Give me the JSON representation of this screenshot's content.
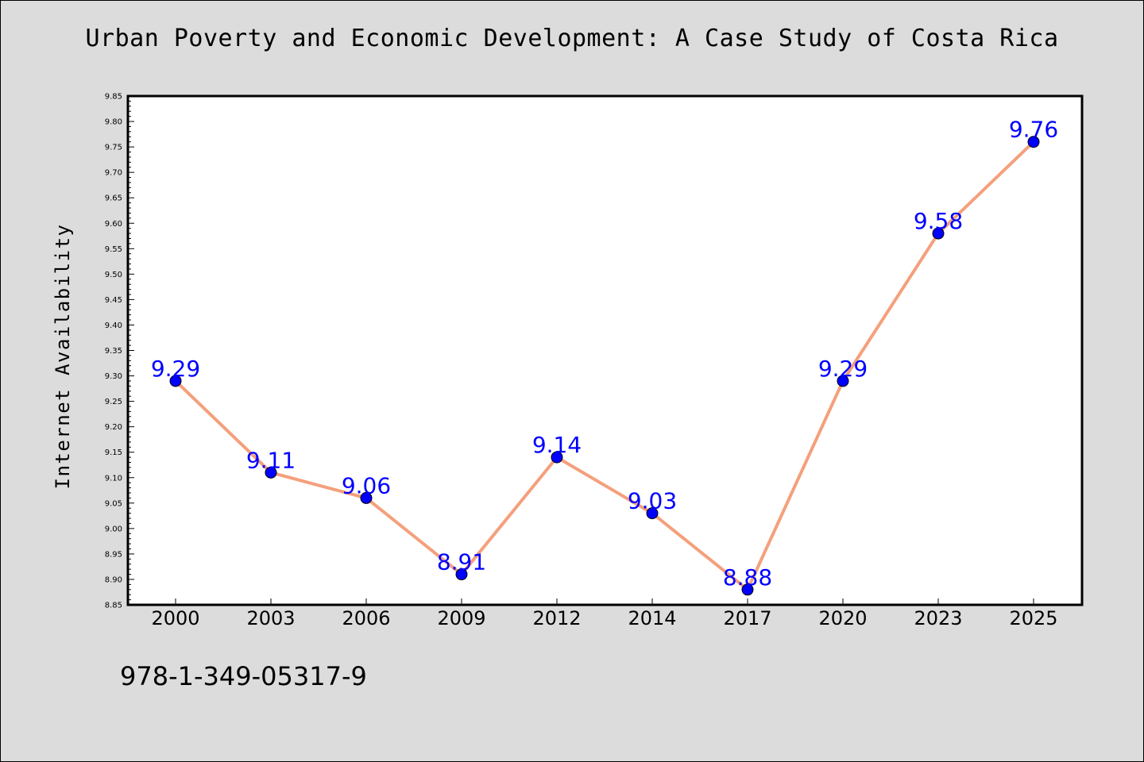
{
  "title": "Urban Poverty and Economic Development: A Case Study of Costa Rica",
  "isbn": "978-1-349-05317-9",
  "colors": {
    "background": "#dcdcdc",
    "plot_background": "#ffffff",
    "line": "#f4a07c",
    "marker": "#0000ff",
    "data_label": "#0000ff"
  },
  "chart_data": {
    "type": "line",
    "title": "Urban Poverty and Economic Development: A Case Study of Costa Rica",
    "xlabel": "",
    "ylabel": "Internet Availability",
    "categories": [
      "2000",
      "2003",
      "2006",
      "2009",
      "2012",
      "2014",
      "2017",
      "2020",
      "2023",
      "2025"
    ],
    "series": [
      {
        "values": [
          9.29,
          9.11,
          9.06,
          8.91,
          9.14,
          9.03,
          8.88,
          9.29,
          9.58,
          9.76
        ],
        "labels": [
          "9.29",
          "9.11",
          "9.06",
          "8.91",
          "9.14",
          "9.03",
          "8.88",
          "9.29",
          "9.58",
          "9.76"
        ]
      }
    ],
    "ylim": [
      8.85,
      9.85
    ],
    "yticks": [
      "8.85",
      "8.90",
      "8.95",
      "9.00",
      "9.05",
      "9.10",
      "9.15",
      "9.20",
      "9.25",
      "9.30",
      "9.35",
      "9.40",
      "9.45",
      "9.50",
      "9.55",
      "9.60",
      "9.65",
      "9.70",
      "9.75",
      "9.80",
      "9.85"
    ],
    "grid": false,
    "legend": "none"
  }
}
